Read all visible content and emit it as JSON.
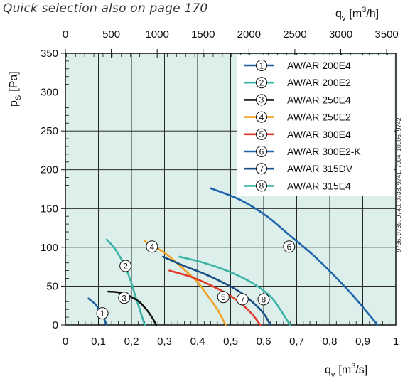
{
  "note": "Quick selection also on page 170",
  "side_text": "9736, 9735, 9740, 9738, 9741, 7004, 10906, 9742",
  "chart_data": {
    "type": "line",
    "plot_background": "#dcefea",
    "x_bottom": {
      "label_main": "q",
      "label_sub": "v",
      "label_unit": "[m",
      "label_sup": "3",
      "label_end": "/s]",
      "range": [
        0,
        1
      ],
      "ticks": [
        "0",
        "0,1",
        "0,2",
        "0,3",
        "0,4",
        "0,5",
        "0,6",
        "0,7",
        "0,8",
        "0,9",
        "1"
      ]
    },
    "x_top": {
      "label_main": "q",
      "label_sub": "v",
      "label_unit": "[m",
      "label_sup": "3",
      "label_end": "/h]",
      "range": [
        0,
        3600
      ],
      "ticks": [
        "0",
        "500",
        "1000",
        "1500",
        "2000",
        "2500",
        "3000",
        "3500"
      ]
    },
    "y": {
      "label_main": "p",
      "label_sub": "S",
      "label_unit": "[Pa]",
      "range": [
        0,
        350
      ],
      "ticks": [
        "0",
        "50",
        "100",
        "150",
        "200",
        "250",
        "300",
        "350"
      ]
    },
    "legend_position": "top-right",
    "series": [
      {
        "num": "1",
        "name": "AW/AR 200E4",
        "color": "#1c5fa0",
        "points": [
          [
            0.07,
            34
          ],
          [
            0.09,
            27
          ],
          [
            0.105,
            18
          ],
          [
            0.115,
            10
          ],
          [
            0.125,
            0
          ]
        ],
        "label_at": [
          0.112,
          15
        ]
      },
      {
        "num": "2",
        "name": "AW/AR 200E2",
        "color": "#3ab3a5",
        "points": [
          [
            0.125,
            110
          ],
          [
            0.15,
            98
          ],
          [
            0.175,
            80
          ],
          [
            0.195,
            60
          ],
          [
            0.21,
            40
          ],
          [
            0.225,
            20
          ],
          [
            0.24,
            0
          ]
        ],
        "label_at": [
          0.182,
          76
        ]
      },
      {
        "num": "3",
        "name": "AW/AR 250E4",
        "color": "#111111",
        "points": [
          [
            0.13,
            43
          ],
          [
            0.16,
            42
          ],
          [
            0.19,
            38
          ],
          [
            0.22,
            31
          ],
          [
            0.245,
            20
          ],
          [
            0.262,
            10
          ],
          [
            0.275,
            0
          ]
        ],
        "label_at": [
          0.178,
          35
        ]
      },
      {
        "num": "4",
        "name": "AW/AR 250E2",
        "color": "#f0a020",
        "points": [
          [
            0.24,
            108
          ],
          [
            0.3,
            93
          ],
          [
            0.35,
            75
          ],
          [
            0.4,
            55
          ],
          [
            0.43,
            38
          ],
          [
            0.46,
            20
          ],
          [
            0.485,
            0
          ]
        ],
        "label_at": [
          0.262,
          101
        ]
      },
      {
        "num": "5",
        "name": "AW/AR 300E4",
        "color": "#e23a2a",
        "points": [
          [
            0.315,
            70
          ],
          [
            0.38,
            62
          ],
          [
            0.44,
            51
          ],
          [
            0.49,
            40
          ],
          [
            0.53,
            28
          ],
          [
            0.565,
            14
          ],
          [
            0.59,
            0
          ]
        ],
        "label_at": [
          0.478,
          36
        ]
      },
      {
        "num": "6",
        "name": "AW/AR 300E2-K",
        "color": "#1f66ad",
        "points": [
          [
            0.44,
            176
          ],
          [
            0.53,
            161
          ],
          [
            0.61,
            140
          ],
          [
            0.68,
            115
          ],
          [
            0.75,
            90
          ],
          [
            0.81,
            65
          ],
          [
            0.87,
            38
          ],
          [
            0.945,
            0
          ]
        ],
        "label_at": [
          0.677,
          101
        ]
      },
      {
        "num": "7",
        "name": "AW/AR 315DV",
        "color": "#1a4f85",
        "points": [
          [
            0.295,
            88
          ],
          [
            0.36,
            76
          ],
          [
            0.42,
            66
          ],
          [
            0.48,
            54
          ],
          [
            0.53,
            42
          ],
          [
            0.57,
            28
          ],
          [
            0.6,
            15
          ],
          [
            0.62,
            0
          ]
        ],
        "label_at": [
          0.536,
          33
        ]
      },
      {
        "num": "8",
        "name": "AW/AR 315E4",
        "color": "#3ab3a5",
        "points": [
          [
            0.345,
            88
          ],
          [
            0.42,
            80
          ],
          [
            0.5,
            68
          ],
          [
            0.57,
            53
          ],
          [
            0.62,
            37
          ],
          [
            0.65,
            20
          ],
          [
            0.68,
            0
          ]
        ],
        "label_at": [
          0.6,
          33
        ]
      }
    ]
  }
}
